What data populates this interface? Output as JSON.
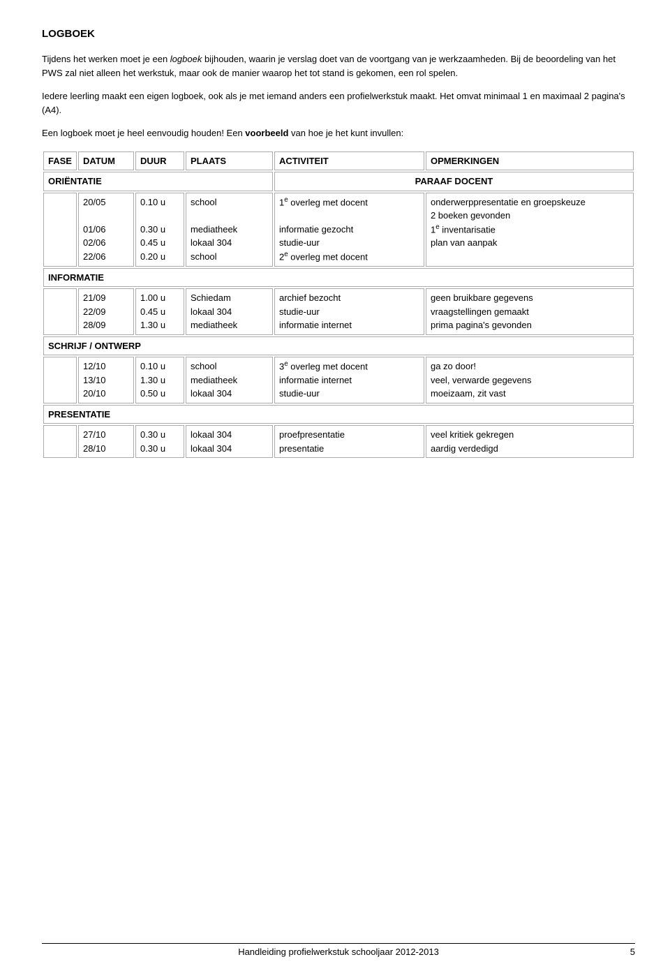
{
  "heading": "LOGBOEK",
  "intro": {
    "part1": "Tijdens het werken moet je een ",
    "italic1": "logboek",
    "part2": " bijhouden, waarin je verslag doet van de voortgang van je werkzaamheden. Bij de beoordeling van het PWS zal niet alleen het werkstuk, maar ook de manier waarop het tot stand is gekomen, een rol spelen.",
    "part3": "Iedere leerling maakt een eigen logboek, ook als je met iemand anders een profielwerkstuk maakt. Het omvat minimaal 1 en maximaal 2 pagina's (A4).",
    "part4a": "Een logboek moet je heel eenvoudig houden! Een ",
    "bold1": "voorbeeld",
    "part4b": " van hoe je het kunt invullen:"
  },
  "headers": {
    "fase": "FASE",
    "datum": "DATUM",
    "duur": "DUUR",
    "plaats": "PLAATS",
    "activiteit": "ACTIVITEIT",
    "opmerkingen": "OPMERKINGEN"
  },
  "sections": [
    {
      "left": "ORIËNTATIE",
      "right": "PARAAF DOCENT",
      "datum": "20/05\n\n01/06\n02/06\n22/06",
      "duur": "0.10 u\n\n0.30 u\n0.45 u\n0.20 u",
      "plaats": "school\n\nmediatheek\nlokaal 304\nschool",
      "activiteit_html": "1<sup>e</sup> overleg met docent<br><br>informatie gezocht<br>studie-uur<br>2<sup>e</sup> overleg met docent",
      "opm_html": "onderwerppresentatie en groepskeuze<br>2 boeken gevonden<br>1<sup>e</sup> inventarisatie<br>plan van aanpak"
    },
    {
      "left": "INFORMATIE",
      "right": "",
      "datum": "21/09\n22/09\n28/09",
      "duur": "1.00 u\n0.45 u\n1.30 u",
      "plaats": "Schiedam\nlokaal 304\nmediatheek",
      "activiteit_html": "archief bezocht<br>studie-uur<br>informatie internet",
      "opm_html": "geen bruikbare gegevens<br>vraagstellingen gemaakt<br>prima pagina's gevonden"
    },
    {
      "left": "SCHRIJF / ONTWERP",
      "right": "",
      "datum": "12/10\n13/10\n20/10",
      "duur": "0.10 u\n1.30 u\n0.50 u",
      "plaats": "school\nmediatheek\nlokaal 304",
      "activiteit_html": "3<sup>e</sup> overleg met docent<br>informatie internet<br>studie-uur",
      "opm_html": "ga zo door!<br>veel, verwarde gegevens<br>moeizaam, zit vast"
    },
    {
      "left": "PRESENTATIE",
      "right": "",
      "datum": "27/10\n28/10",
      "duur": "0.30 u\n0.30 u",
      "plaats": "lokaal 304\nlokaal 304",
      "activiteit_html": "proefpresentatie<br>presentatie",
      "opm_html": "veel kritiek gekregen<br>aardig verdedigd"
    }
  ],
  "footer": {
    "text": "Handleiding profielwerkstuk schooljaar 2012-2013",
    "page": "5"
  }
}
